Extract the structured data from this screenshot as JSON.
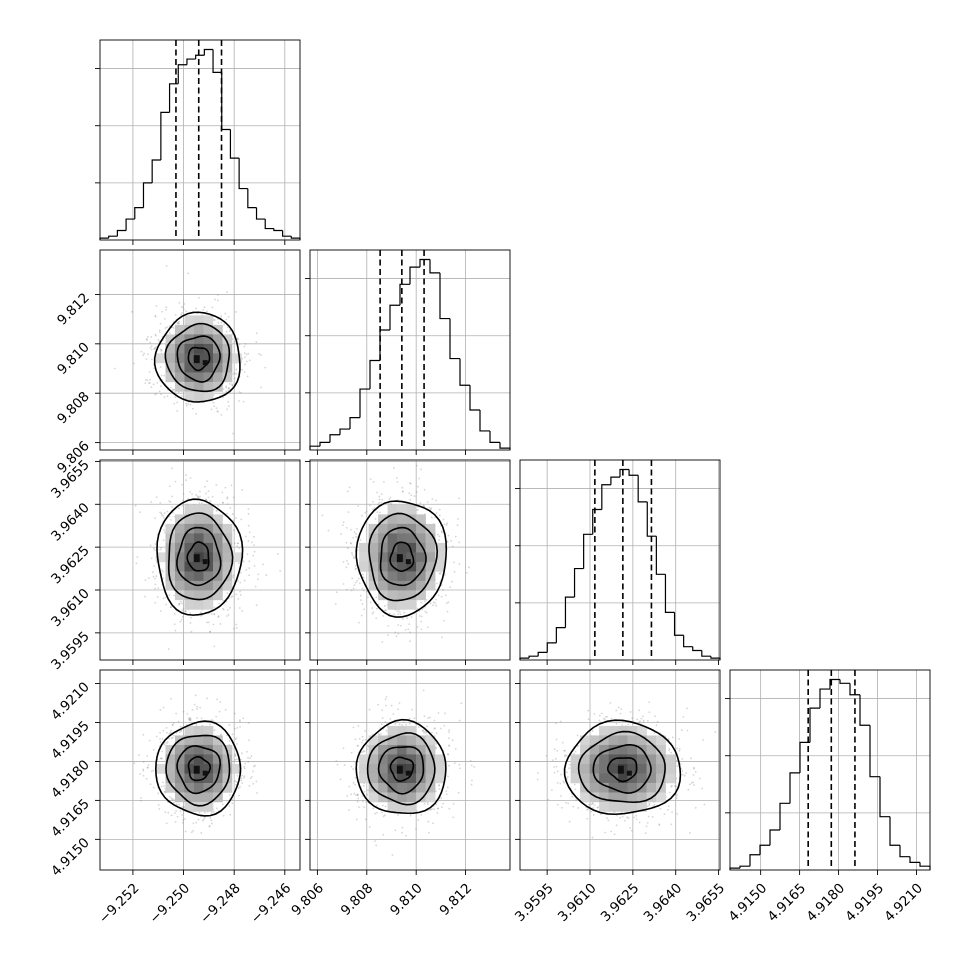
{
  "chart_data": {
    "type": "corner",
    "title": "",
    "grid": true,
    "quantiles": [
      0.16,
      0.5,
      0.84
    ],
    "parameters": [
      {
        "median": -9.2494,
        "sigma": 0.00082,
        "range": [
          -9.2533,
          -9.2454
        ],
        "ticks": [
          {
            "value": -9.252,
            "label": "−9.252"
          },
          {
            "value": -9.25,
            "label": "−9.250"
          },
          {
            "value": -9.248,
            "label": "−9.248"
          },
          {
            "value": -9.246,
            "label": "−9.246"
          }
        ],
        "hist_counts": [
          0.01,
          0.02,
          0.05,
          0.11,
          0.17,
          0.3,
          0.42,
          0.67,
          0.82,
          0.92,
          0.95,
          0.97,
          1.0,
          0.88,
          0.58,
          0.43,
          0.27,
          0.17,
          0.11,
          0.06,
          0.05,
          0.02,
          0.01
        ],
        "quantile_values": [
          -9.2503,
          -9.2494,
          -9.2485
        ]
      },
      {
        "median": 9.80942,
        "sigma": 0.00089,
        "range": [
          9.8057,
          9.8138
        ],
        "ticks": [
          {
            "value": 9.806,
            "label": "9.806"
          },
          {
            "value": 9.808,
            "label": "9.808"
          },
          {
            "value": 9.81,
            "label": "9.810"
          },
          {
            "value": 9.812,
            "label": "9.812"
          }
        ],
        "hist_counts": [
          0.02,
          0.04,
          0.08,
          0.11,
          0.17,
          0.32,
          0.47,
          0.63,
          0.76,
          0.87,
          0.96,
          1.0,
          0.93,
          0.69,
          0.48,
          0.34,
          0.21,
          0.1,
          0.04,
          0.01
        ],
        "quantile_values": [
          9.80854,
          9.80942,
          9.81032
        ]
      },
      {
        "median": 3.96215,
        "sigma": 0.00099,
        "range": [
          3.95855,
          3.96555
        ],
        "ticks": [
          {
            "value": 3.9595,
            "label": "3.9595"
          },
          {
            "value": 3.961,
            "label": "3.9610"
          },
          {
            "value": 3.9625,
            "label": "3.9625"
          },
          {
            "value": 3.964,
            "label": "3.9640"
          },
          {
            "value": 3.9655,
            "label": "3.9655"
          }
        ],
        "hist_counts": [
          0.01,
          0.02,
          0.04,
          0.09,
          0.17,
          0.33,
          0.48,
          0.66,
          0.79,
          0.92,
          0.96,
          1.0,
          0.97,
          0.83,
          0.65,
          0.45,
          0.25,
          0.13,
          0.07,
          0.05,
          0.02,
          0.01
        ],
        "quantile_values": [
          3.96117,
          3.96215,
          3.96315
        ]
      },
      {
        "median": 4.91772,
        "sigma": 0.00088,
        "range": [
          4.91382,
          4.92152
        ],
        "ticks": [
          {
            "value": 4.915,
            "label": "4.9150"
          },
          {
            "value": 4.9165,
            "label": "4.9165"
          },
          {
            "value": 4.918,
            "label": "4.9180"
          },
          {
            "value": 4.9195,
            "label": "4.9195"
          },
          {
            "value": 4.921,
            "label": "4.9210"
          }
        ],
        "hist_counts": [
          0.01,
          0.02,
          0.08,
          0.13,
          0.21,
          0.35,
          0.51,
          0.67,
          0.85,
          0.95,
          1.0,
          0.98,
          0.92,
          0.76,
          0.49,
          0.28,
          0.13,
          0.07,
          0.04,
          0.02
        ],
        "quantile_values": [
          4.91683,
          4.91772,
          4.91863
        ]
      }
    ]
  }
}
